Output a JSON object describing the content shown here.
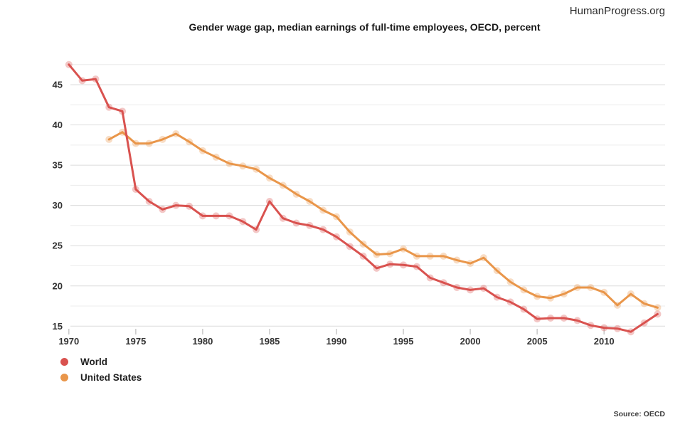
{
  "header": {
    "site": "HumanProgress.org",
    "title": "Gender wage gap, median earnings of full-time employees, OECD, percent"
  },
  "source": "Source: OECD",
  "legend": {
    "items": [
      {
        "label": "World",
        "color": "#d9524f"
      },
      {
        "label": "United States",
        "color": "#e9964a"
      }
    ]
  },
  "colors": {
    "grid_major": "#dcdcdc",
    "grid_minor": "#ececec",
    "axis_tick": "#c8c8c8",
    "tick_label": "#333333"
  },
  "chart_data": {
    "type": "line",
    "title": "Gender wage gap, median earnings of full-time employees, OECD, percent",
    "xlabel": "",
    "ylabel": "",
    "units": "percent",
    "grid": true,
    "legend_position": "bottom-left",
    "x": [
      1970,
      1971,
      1972,
      1973,
      1974,
      1975,
      1976,
      1977,
      1978,
      1979,
      1980,
      1981,
      1982,
      1983,
      1984,
      1985,
      1986,
      1987,
      1988,
      1989,
      1990,
      1991,
      1992,
      1993,
      1994,
      1995,
      1996,
      1997,
      1998,
      1999,
      2000,
      2001,
      2002,
      2003,
      2004,
      2005,
      2006,
      2007,
      2008,
      2009,
      2010,
      2011,
      2012,
      2013,
      2014
    ],
    "x_ticks": [
      1970,
      1975,
      1980,
      1985,
      1990,
      1995,
      2000,
      2005,
      2010
    ],
    "y_ticks": [
      15,
      20,
      25,
      30,
      35,
      40,
      45
    ],
    "y_minor_ticks": [
      17.5,
      22.5,
      27.5,
      32.5,
      37.5,
      42.5,
      47.5
    ],
    "xlim": [
      1970,
      2014
    ],
    "ylim": [
      13.8,
      48.8
    ],
    "series": [
      {
        "name": "World",
        "color": "#d9524f",
        "values": [
          47.5,
          45.5,
          45.7,
          42.2,
          41.7,
          32.0,
          30.5,
          29.5,
          30.0,
          29.9,
          28.7,
          28.7,
          28.7,
          28.0,
          27.0,
          30.5,
          28.4,
          27.8,
          27.5,
          27.0,
          26.1,
          24.9,
          23.7,
          22.2,
          22.7,
          22.6,
          22.4,
          21.0,
          20.4,
          19.8,
          19.5,
          19.7,
          18.6,
          18.0,
          17.1,
          15.9,
          16.0,
          16.0,
          15.7,
          15.1,
          14.8,
          14.7,
          14.3,
          15.4,
          16.5
        ]
      },
      {
        "name": "United States",
        "color": "#e9964a",
        "values": [
          null,
          null,
          null,
          38.2,
          39.1,
          37.7,
          37.7,
          38.2,
          38.9,
          37.9,
          36.8,
          36.0,
          35.2,
          34.9,
          34.5,
          33.4,
          32.5,
          31.4,
          30.5,
          29.4,
          28.6,
          26.7,
          25.2,
          23.9,
          24.0,
          24.6,
          23.7,
          23.7,
          23.7,
          23.2,
          22.8,
          23.5,
          21.9,
          20.5,
          19.5,
          18.7,
          18.5,
          19.0,
          19.8,
          19.8,
          19.2,
          17.6,
          19.0,
          17.8,
          17.3
        ]
      }
    ]
  }
}
